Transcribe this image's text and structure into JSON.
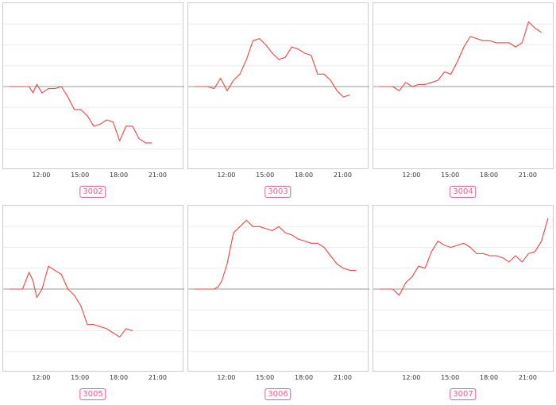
{
  "chart_data": [
    {
      "type": "line",
      "title": "3002",
      "x_ticks": [
        "12:00",
        "15:00",
        "18:00",
        "21:00"
      ],
      "x": [
        9.5,
        10.5,
        11.0,
        11.3,
        11.6,
        12.0,
        12.5,
        13.0,
        13.5,
        14.0,
        14.5,
        15.0,
        15.5,
        16.0,
        16.5,
        17.0,
        17.5,
        18.0,
        18.5,
        19.0,
        19.5,
        20.0,
        20.5
      ],
      "values": [
        0,
        0,
        0,
        -0.3,
        0.1,
        -0.3,
        -0.1,
        -0.1,
        0,
        -0.5,
        -1.1,
        -1.1,
        -1.4,
        -1.9,
        -1.8,
        -1.6,
        -1.7,
        -2.6,
        -1.9,
        -1.9,
        -2.5,
        -2.7,
        -2.7
      ],
      "ylim": [
        -4,
        4
      ],
      "baseline": 0,
      "line_color": "#ee4444",
      "grid": true
    },
    {
      "type": "line",
      "title": "3003",
      "x_ticks": [
        "12:00",
        "15:00",
        "18:00",
        "21:00"
      ],
      "x": [
        9.5,
        10.5,
        11.0,
        11.5,
        12.0,
        12.5,
        13.0,
        13.5,
        14.0,
        14.5,
        15.0,
        15.5,
        16.0,
        16.5,
        17.0,
        17.5,
        18.0,
        18.5,
        19.0,
        19.5,
        20.0,
        20.5,
        21.0,
        21.5
      ],
      "values": [
        0,
        0,
        -0.1,
        0.4,
        -0.2,
        0.3,
        0.6,
        1.3,
        2.2,
        2.3,
        2.0,
        1.6,
        1.3,
        1.4,
        1.9,
        1.8,
        1.6,
        1.5,
        0.6,
        0.6,
        0.3,
        -0.2,
        -0.5,
        -0.4
      ],
      "ylim": [
        -4,
        4
      ],
      "baseline": 0,
      "line_color": "#ee4444",
      "grid": true
    },
    {
      "type": "line",
      "title": "3004",
      "x_ticks": [
        "12:00",
        "15:00",
        "18:00",
        "21:00"
      ],
      "x": [
        9.5,
        10.5,
        11.0,
        11.5,
        12.0,
        12.5,
        13.0,
        13.5,
        14.0,
        14.5,
        15.0,
        15.5,
        16.0,
        16.5,
        17.0,
        17.5,
        18.0,
        18.5,
        19.0,
        19.5,
        20.0,
        20.5,
        21.0,
        21.5,
        22.0
      ],
      "values": [
        0,
        0,
        -0.2,
        0.2,
        0,
        0.1,
        0.1,
        0.2,
        0.3,
        0.7,
        0.6,
        1.2,
        1.9,
        2.4,
        2.3,
        2.2,
        2.2,
        2.1,
        2.1,
        2.1,
        1.9,
        2.1,
        3.1,
        2.8,
        2.6
      ],
      "ylim": [
        -4,
        4
      ],
      "baseline": 0,
      "line_color": "#ee4444",
      "grid": true
    },
    {
      "type": "line",
      "title": "3005",
      "x_ticks": [
        "12:00",
        "15:00",
        "18:00",
        "21:00"
      ],
      "x": [
        9.5,
        10.5,
        11.0,
        11.3,
        11.6,
        12.0,
        12.5,
        13.0,
        13.5,
        14.0,
        14.5,
        15.0,
        15.5,
        16.0,
        16.5,
        17.0,
        17.5,
        18.0,
        18.5,
        19.0
      ],
      "values": [
        0,
        0,
        0.8,
        0.4,
        -0.4,
        0,
        1.1,
        0.9,
        0.7,
        0,
        -0.3,
        -0.8,
        -1.7,
        -1.7,
        -1.8,
        -1.9,
        -2.1,
        -2.3,
        -1.9,
        -2.0
      ],
      "ylim": [
        -4,
        4
      ],
      "baseline": 0,
      "line_color": "#ee4444",
      "grid": true
    },
    {
      "type": "line",
      "title": "3006",
      "x_ticks": [
        "12:00",
        "15:00",
        "18:00",
        "21:00"
      ],
      "x": [
        9.5,
        10.5,
        11.0,
        11.3,
        11.6,
        12.0,
        12.5,
        13.0,
        13.5,
        14.0,
        14.5,
        15.0,
        15.5,
        16.0,
        16.5,
        17.0,
        17.5,
        18.0,
        18.5,
        19.0,
        19.5,
        20.0,
        20.5,
        21.0,
        21.5,
        22.0
      ],
      "values": [
        0,
        0,
        0,
        0.1,
        0.4,
        1.2,
        2.7,
        3.0,
        3.3,
        3.0,
        3.0,
        2.9,
        2.8,
        3.0,
        2.7,
        2.6,
        2.4,
        2.3,
        2.2,
        2.2,
        2.0,
        1.6,
        1.2,
        1.0,
        0.9,
        0.9
      ],
      "ylim": [
        -4,
        4
      ],
      "baseline": 0,
      "line_color": "#ee4444",
      "grid": true
    },
    {
      "type": "line",
      "title": "3007",
      "x_ticks": [
        "12:00",
        "15:00",
        "18:00",
        "21:00"
      ],
      "x": [
        9.5,
        10.5,
        11.0,
        11.5,
        12.0,
        12.5,
        13.0,
        13.5,
        14.0,
        14.5,
        15.0,
        15.5,
        16.0,
        16.5,
        17.0,
        17.5,
        18.0,
        18.5,
        19.0,
        19.5,
        20.0,
        20.5,
        21.0,
        21.5,
        22.0,
        22.5
      ],
      "values": [
        0,
        0,
        -0.3,
        0.3,
        0.6,
        1.1,
        1.0,
        1.8,
        2.3,
        2.1,
        2.0,
        2.1,
        2.2,
        2.0,
        1.7,
        1.7,
        1.6,
        1.6,
        1.5,
        1.3,
        1.6,
        1.3,
        1.7,
        1.8,
        2.3,
        3.4
      ],
      "ylim": [
        -4,
        4
      ],
      "baseline": 0,
      "line_color": "#ee4444",
      "grid": true
    }
  ]
}
